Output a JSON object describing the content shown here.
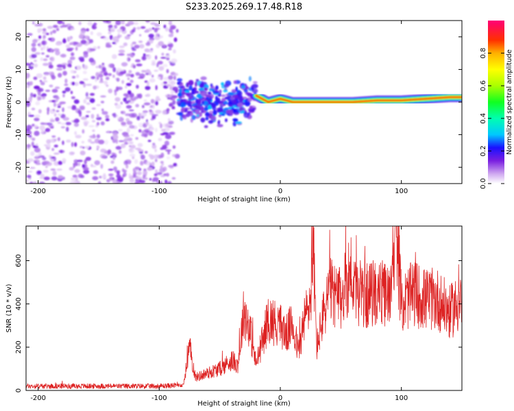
{
  "chart_data": [
    {
      "type": "heatmap",
      "title": "S233.2025.269.17.48.R18",
      "xlabel": "Height of straight line (km)",
      "ylabel": "Frequency (Hz)",
      "xlim": [
        -210,
        150
      ],
      "ylim": [
        -25,
        25
      ],
      "xticks": [
        -200,
        -100,
        0,
        100
      ],
      "yticks": [
        -20,
        -10,
        0,
        10,
        20
      ],
      "colorbar": {
        "label": "Normalized spectral amplitude",
        "range": [
          0,
          1
        ],
        "ticks": [
          0.0,
          0.2,
          0.4,
          0.6,
          0.8
        ]
      },
      "regions": [
        {
          "name": "noise",
          "x_range": [
            -210,
            -85
          ],
          "y_range": [
            -25,
            25
          ],
          "amplitude": [
            0.02,
            0.15
          ]
        },
        {
          "name": "onset",
          "x_range": [
            -85,
            -20
          ],
          "y_center": 0,
          "y_spread": 8,
          "amplitude": [
            0.1,
            0.3
          ]
        },
        {
          "name": "track",
          "x_range": [
            -20,
            150
          ],
          "y_center": [
            0,
            2
          ],
          "amplitude": [
            0.4,
            1.0
          ]
        }
      ],
      "track": {
        "x": [
          -20,
          -10,
          0,
          10,
          20,
          40,
          60,
          80,
          100,
          120,
          140,
          150
        ],
        "y": [
          2,
          0,
          1,
          0,
          0,
          0,
          0,
          0.5,
          0.5,
          1,
          1.5,
          1.5
        ]
      }
    },
    {
      "type": "line",
      "xlabel": "Height of straight line (km)",
      "ylabel": "SNR (10 * v/v)",
      "xlim": [
        -210,
        150
      ],
      "ylim": [
        0,
        760
      ],
      "xticks": [
        -200,
        -100,
        0,
        100
      ],
      "yticks": [
        0,
        200,
        400,
        600
      ],
      "series": [
        {
          "name": "SNR",
          "color": "#dd2222",
          "x": [
            -210,
            -100,
            -80,
            -75,
            -70,
            -60,
            -50,
            -40,
            -35,
            -30,
            -25,
            -20,
            -10,
            0,
            5,
            10,
            15,
            20,
            25,
            27,
            30,
            40,
            50,
            58,
            60,
            70,
            80,
            90,
            95,
            100,
            110,
            120,
            130,
            140,
            150
          ],
          "y": [
            20,
            20,
            25,
            200,
            60,
            80,
            100,
            140,
            120,
            370,
            280,
            120,
            330,
            300,
            260,
            310,
            180,
            330,
            420,
            710,
            200,
            460,
            420,
            560,
            480,
            430,
            460,
            430,
            770,
            400,
            450,
            420,
            420,
            360,
            420
          ],
          "noise": 0.35
        }
      ]
    }
  ]
}
